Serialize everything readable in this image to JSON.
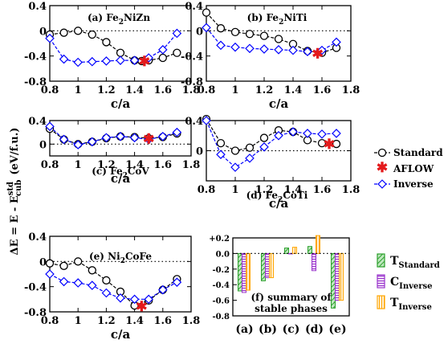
{
  "figure": {
    "ylabel_main": "ΔE = E - E",
    "ylabel_sup": "std",
    "ylabel_sub": "cub",
    "ylabel_unit": "(eV/f.u.)"
  },
  "legend_main": {
    "items": [
      {
        "label": "Standard",
        "color": "#000000",
        "marker": "circle"
      },
      {
        "label": "AFLOW",
        "color": "#e41a1c",
        "marker": "star"
      },
      {
        "label": "Inverse",
        "color": "#0000ff",
        "marker": "diamond"
      }
    ]
  },
  "legend_bar": {
    "items": [
      {
        "base": "T",
        "sub": "Standard",
        "color": "#2ca02c"
      },
      {
        "base": "C",
        "sub": "Inverse",
        "color": "#9932cc"
      },
      {
        "base": "T",
        "sub": "Inverse",
        "color": "#ffa500"
      }
    ]
  },
  "chart_data": [
    {
      "type": "line",
      "label_prefix": "(a) Fe",
      "label_sub": "2",
      "label_suffix": "NiZn",
      "xlabel": "c/a",
      "xlim": [
        0.8,
        1.8
      ],
      "ylim": [
        -0.8,
        0.4
      ],
      "xticks": [
        "0.8",
        "1",
        "1.2",
        "1.4",
        "1.6",
        "1.8"
      ],
      "yticks": [
        "0.4",
        "0",
        "-0.4",
        "-0.8"
      ],
      "series": [
        {
          "name": "Standard",
          "x": [
            0.8,
            0.9,
            1.0,
            1.1,
            1.2,
            1.3,
            1.4,
            1.45,
            1.5,
            1.6,
            1.7
          ],
          "y": [
            -0.06,
            -0.03,
            0.0,
            -0.06,
            -0.18,
            -0.35,
            -0.47,
            -0.48,
            -0.47,
            -0.43,
            -0.35
          ]
        },
        {
          "name": "Inverse",
          "x": [
            0.8,
            0.9,
            1.0,
            1.1,
            1.2,
            1.3,
            1.4,
            1.5,
            1.6,
            1.7
          ],
          "y": [
            -0.12,
            -0.45,
            -0.5,
            -0.49,
            -0.48,
            -0.47,
            -0.47,
            -0.43,
            -0.3,
            -0.04
          ]
        },
        {
          "name": "AFLOW",
          "x": [
            1.47
          ],
          "y": [
            -0.48
          ]
        }
      ]
    },
    {
      "type": "line",
      "label_prefix": "(b) Fe",
      "label_sub": "2",
      "label_suffix": "NiTi",
      "xlabel": "c/a",
      "xlim": [
        0.8,
        1.8
      ],
      "ylim": [
        -0.8,
        0.4
      ],
      "xticks": [
        "0.8",
        "1",
        "1.2",
        "1.4",
        "1.6",
        "1.8"
      ],
      "yticks": [
        "0.4",
        "0",
        "-0.4",
        "-0.8"
      ],
      "series": [
        {
          "name": "Standard",
          "x": [
            0.8,
            0.9,
            1.0,
            1.1,
            1.2,
            1.3,
            1.4,
            1.5,
            1.6,
            1.7
          ],
          "y": [
            0.29,
            0.04,
            -0.02,
            -0.05,
            -0.08,
            -0.13,
            -0.21,
            -0.32,
            -0.35,
            -0.27
          ]
        },
        {
          "name": "Inverse",
          "x": [
            0.8,
            0.9,
            1.0,
            1.1,
            1.2,
            1.3,
            1.4,
            1.5,
            1.6,
            1.7
          ],
          "y": [
            0.05,
            -0.23,
            -0.26,
            -0.28,
            -0.29,
            -0.3,
            -0.31,
            -0.33,
            -0.31,
            -0.18
          ]
        },
        {
          "name": "AFLOW",
          "x": [
            1.57
          ],
          "y": [
            -0.36
          ]
        }
      ]
    },
    {
      "type": "line",
      "label_prefix": "(c) Fe",
      "label_sub": "2",
      "label_suffix": "CoV",
      "xlabel": "c/a",
      "xlim": [
        0.8,
        1.8
      ],
      "ylim": [
        -0.2,
        0.4
      ],
      "xticks": [
        "0.8",
        "1",
        "1.2",
        "1.4",
        "1.6",
        "1.8"
      ],
      "yticks": [
        "0.4",
        "0"
      ],
      "series": [
        {
          "name": "Standard",
          "x": [
            0.8,
            0.9,
            1.0,
            1.1,
            1.2,
            1.3,
            1.4,
            1.5,
            1.6,
            1.7
          ],
          "y": [
            0.26,
            0.08,
            0.0,
            0.04,
            0.1,
            0.13,
            0.12,
            0.1,
            0.12,
            0.18
          ]
        },
        {
          "name": "Inverse",
          "x": [
            0.8,
            0.9,
            1.0,
            1.1,
            1.2,
            1.3,
            1.4,
            1.5,
            1.6,
            1.7
          ],
          "y": [
            0.3,
            0.08,
            -0.01,
            0.04,
            0.11,
            0.13,
            0.11,
            0.08,
            0.13,
            0.2
          ]
        },
        {
          "name": "AFLOW",
          "x": [
            1.5
          ],
          "y": [
            0.09
          ]
        }
      ]
    },
    {
      "type": "line",
      "label_prefix": "(d) Fe",
      "label_sub": "2",
      "label_suffix": "CoTi",
      "xlabel": "c/a",
      "xlim": [
        0.8,
        1.8
      ],
      "ylim": [
        -0.4,
        0.4
      ],
      "xticks": [
        "0.8",
        "1",
        "1.2",
        "1.4",
        "1.6",
        "1.8"
      ],
      "yticks": [
        "0.4",
        "0"
      ],
      "series": [
        {
          "name": "Standard",
          "x": [
            0.8,
            0.9,
            1.0,
            1.1,
            1.2,
            1.3,
            1.4,
            1.5,
            1.6,
            1.7
          ],
          "y": [
            0.42,
            0.1,
            0.0,
            0.04,
            0.17,
            0.27,
            0.25,
            0.14,
            0.1,
            0.09
          ]
        },
        {
          "name": "Inverse",
          "x": [
            0.8,
            0.9,
            1.0,
            1.1,
            1.2,
            1.3,
            1.4,
            1.5,
            1.6,
            1.7
          ],
          "y": [
            0.4,
            -0.05,
            -0.22,
            -0.1,
            0.05,
            0.2,
            0.25,
            0.23,
            0.22,
            0.23
          ]
        },
        {
          "name": "AFLOW",
          "x": [
            1.65
          ],
          "y": [
            0.09
          ]
        }
      ]
    },
    {
      "type": "line",
      "label_prefix": "(e) Ni",
      "label_sub": "2",
      "label_suffix": "CoFe",
      "xlabel": "c/a",
      "xlim": [
        0.8,
        1.8
      ],
      "ylim": [
        -0.8,
        0.4
      ],
      "xticks": [
        "0.8",
        "1",
        "1.2",
        "1.4",
        "1.6",
        "1.8"
      ],
      "yticks": [
        "0.4",
        "0",
        "-0.4",
        "-0.8"
      ],
      "series": [
        {
          "name": "Standard",
          "x": [
            0.8,
            0.9,
            1.0,
            1.1,
            1.2,
            1.3,
            1.4,
            1.5,
            1.6,
            1.7
          ],
          "y": [
            -0.03,
            -0.07,
            0.0,
            -0.14,
            -0.3,
            -0.48,
            -0.7,
            -0.62,
            -0.45,
            -0.28
          ]
        },
        {
          "name": "Inverse",
          "x": [
            0.8,
            0.9,
            1.0,
            1.1,
            1.2,
            1.3,
            1.4,
            1.5,
            1.6,
            1.7
          ],
          "y": [
            -0.2,
            -0.32,
            -0.34,
            -0.38,
            -0.5,
            -0.58,
            -0.6,
            -0.6,
            -0.45,
            -0.33
          ]
        },
        {
          "name": "AFLOW",
          "x": [
            1.45
          ],
          "y": [
            -0.71
          ]
        }
      ]
    },
    {
      "type": "bar",
      "categories": [
        "(a)",
        "(b)",
        "(c)",
        "(d)",
        "(e)"
      ],
      "ylim": [
        -0.8,
        0.2
      ],
      "yticks": [
        "+0.2",
        "0.0",
        "-0.2",
        "-0.4",
        "-0.6",
        "-0.8"
      ],
      "label_line1": "(f) summary of",
      "label_line2": "stable phases",
      "series": [
        {
          "name": "T_Standard",
          "values": [
            -0.48,
            -0.35,
            0.07,
            0.09,
            -0.7
          ]
        },
        {
          "name": "C_Inverse",
          "values": [
            -0.5,
            -0.31,
            0.0,
            -0.22,
            -0.6
          ]
        },
        {
          "name": "T_Inverse",
          "values": [
            -0.47,
            -0.31,
            0.08,
            0.23,
            -0.6
          ]
        }
      ]
    }
  ]
}
